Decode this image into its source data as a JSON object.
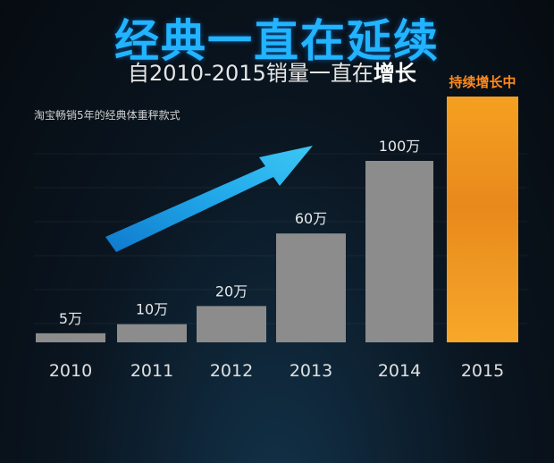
{
  "header": {
    "title": "经典一直在延续",
    "subtitle_prefix": "自2010-2015销量一直在",
    "subtitle_emphasis": "增长",
    "note": "淘宝畅销5年的经典体重秤款式"
  },
  "chart_data": {
    "type": "bar",
    "categories": [
      "2010",
      "2011",
      "2012",
      "2013",
      "2014",
      "2015"
    ],
    "values": [
      5,
      10,
      20,
      60,
      100,
      null
    ],
    "data_labels": [
      "5万",
      "10万",
      "20万",
      "60万",
      "100万",
      "持续增长中"
    ],
    "unit": "万",
    "highlight_category": "2015",
    "colors": {
      "bar": "#8c8c8c",
      "highlight_top": "#f08c1e",
      "highlight_bottom": "#f5a225",
      "arrow": "#1fa3ee"
    },
    "grid": true
  }
}
